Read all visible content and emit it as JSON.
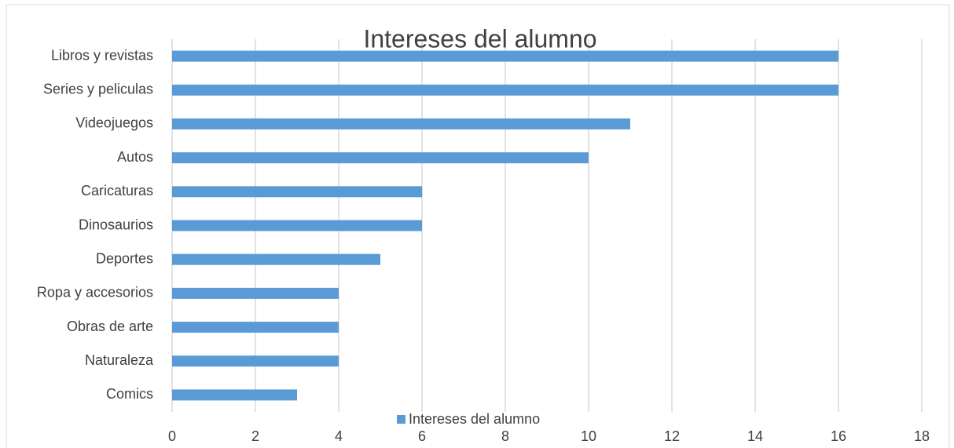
{
  "chart_data": {
    "type": "barh",
    "title": "Intereses del alumno",
    "categories": [
      "Libros y revistas",
      "Series y peliculas",
      "Videojuegos",
      "Autos",
      "Caricaturas",
      "Dinosaurios",
      "Deportes",
      "Ropa y accesorios",
      "Obras de arte",
      "Naturaleza",
      "Comics"
    ],
    "series": [
      {
        "name": "Intereses del alumno",
        "color": "#5b9bd5",
        "values": [
          16,
          16,
          11,
          10,
          6,
          6,
          5,
          4,
          4,
          4,
          3
        ]
      }
    ],
    "xlim": [
      0,
      18
    ],
    "xticks": [
      0,
      2,
      4,
      6,
      8,
      10,
      12,
      14,
      16,
      18
    ],
    "grid": true,
    "legend": "bottom"
  }
}
